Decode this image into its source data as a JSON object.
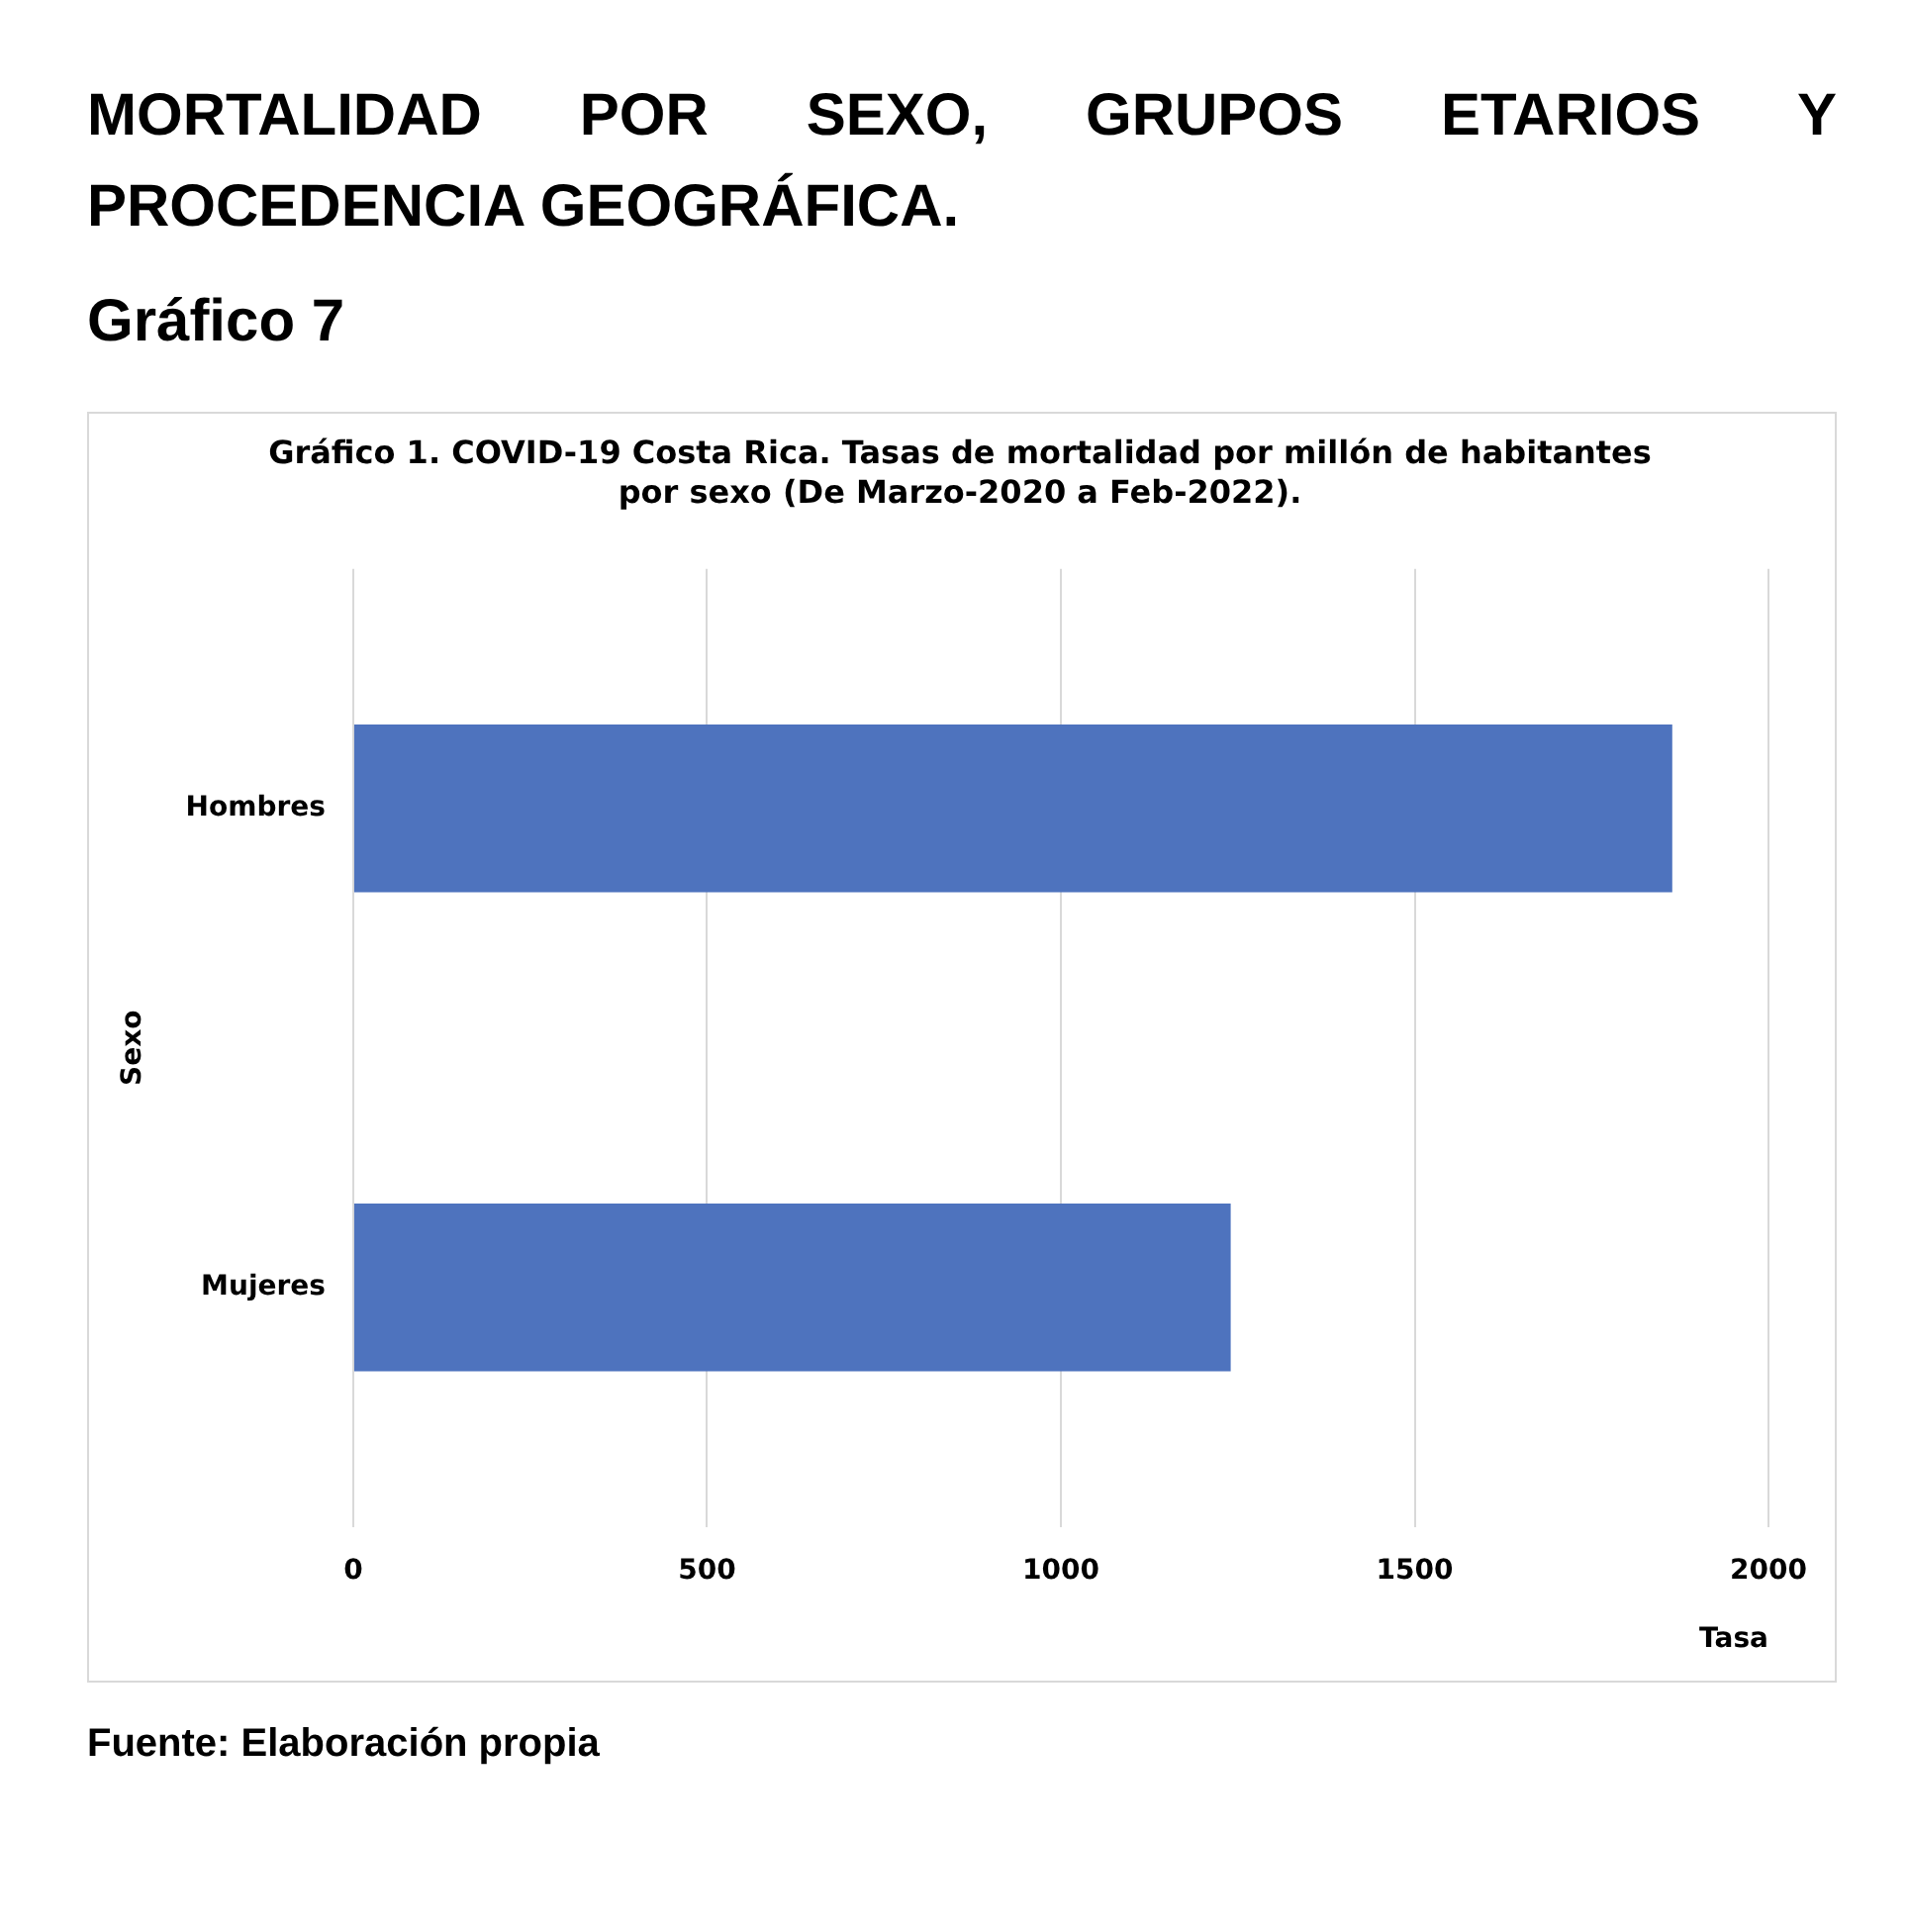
{
  "chart_data": {
    "type": "bar",
    "orientation": "horizontal",
    "title": "Gráfico 1. COVID-19 Costa Rica. Tasas de mortalidad por millón de habitantes por sexo (De Marzo-2020 a Feb-2022).",
    "categories": [
      "Hombres",
      "Mujeres"
    ],
    "values": [
      1864,
      1240
    ],
    "color": "#4e73be",
    "xlim": [
      0,
      2000
    ],
    "xticks": [
      0,
      500,
      1000,
      1500,
      2000
    ],
    "xlabel": "Tasa",
    "ylabel": "Sexo",
    "grid": "x",
    "legend": false,
    "annotations": [
      "MORTALIDAD POR SEXO, GRUPOS ETARIOS Y PROCEDENCIA GEOGRÁFICA.",
      "Gráfico 7",
      "Fuente: Elaboración propia"
    ]
  }
}
